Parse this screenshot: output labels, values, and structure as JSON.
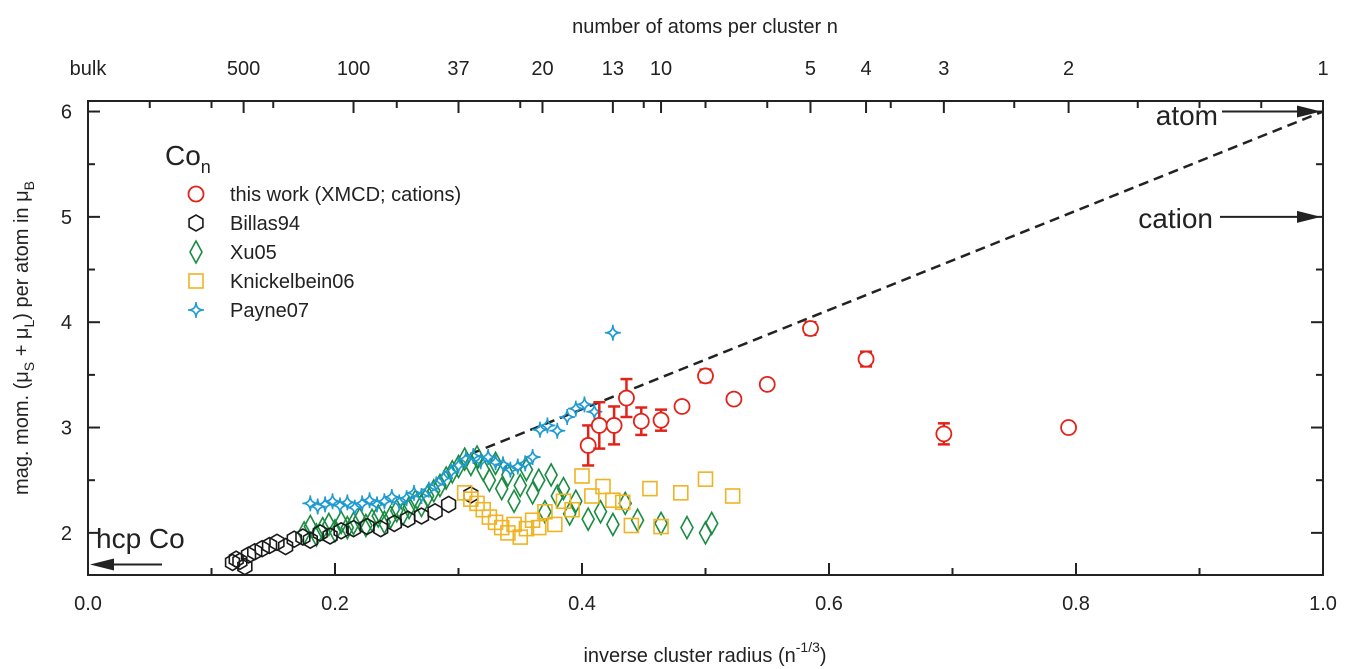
{
  "chart_data": {
    "type": "scatter",
    "title": "",
    "xlabel": "inverse cluster radius (n",
    "xlabel_sup": "-1/3",
    "xlabel_end": ")",
    "ylabel_parts": [
      "mag. mom. (μ",
      "S",
      " + μ",
      "L",
      ") per atom in μ",
      "B"
    ],
    "top_axis_title": "number of atoms per cluster n",
    "xlim": [
      0.0,
      1.0
    ],
    "ylim": [
      1.6,
      6.1
    ],
    "grid": false,
    "legend_placement": "top-left",
    "x_ticks": [
      {
        "value": 0.0,
        "label": "0.0"
      },
      {
        "value": 0.2,
        "label": "0.2"
      },
      {
        "value": 0.4,
        "label": "0.4"
      },
      {
        "value": 0.6,
        "label": "0.6"
      },
      {
        "value": 0.8,
        "label": "0.8"
      },
      {
        "value": 1.0,
        "label": "1.0"
      }
    ],
    "y_ticks": [
      {
        "value": 2,
        "label": "2"
      },
      {
        "value": 3,
        "label": "3"
      },
      {
        "value": 4,
        "label": "4"
      },
      {
        "value": 5,
        "label": "5"
      },
      {
        "value": 6,
        "label": "6"
      }
    ],
    "top_ticks": [
      {
        "value": 0.0,
        "label": "bulk"
      },
      {
        "value": 0.126,
        "label": "500"
      },
      {
        "value": 0.215,
        "label": "100"
      },
      {
        "value": 0.3,
        "label": "37"
      },
      {
        "value": 0.368,
        "label": "20"
      },
      {
        "value": 0.425,
        "label": "13"
      },
      {
        "value": 0.464,
        "label": "10"
      },
      {
        "value": 0.585,
        "label": "5"
      },
      {
        "value": 0.63,
        "label": "4"
      },
      {
        "value": 0.693,
        "label": "3"
      },
      {
        "value": 0.794,
        "label": "2"
      },
      {
        "value": 1.0,
        "label": "1"
      }
    ],
    "top_minor_ticks": [
      0.5,
      0.55,
      0.05,
      0.1,
      0.15,
      0.25,
      0.35,
      0.45,
      0.65,
      0.75,
      0.85,
      0.9,
      0.95
    ],
    "legend_title": "Co",
    "legend_title_sub": "n",
    "series": [
      {
        "name": "this work (XMCD; cations)",
        "marker": "circle",
        "color": "#e2231a",
        "points": [
          {
            "x": 0.405,
            "y": 2.83,
            "err": 0.19
          },
          {
            "x": 0.414,
            "y": 3.02,
            "err": 0.22
          },
          {
            "x": 0.426,
            "y": 3.02,
            "err": 0.18
          },
          {
            "x": 0.436,
            "y": 3.28,
            "err": 0.18
          },
          {
            "x": 0.448,
            "y": 3.06,
            "err": 0.13
          },
          {
            "x": 0.464,
            "y": 3.07,
            "err": 0.1
          },
          {
            "x": 0.481,
            "y": 3.2,
            "err": 0.04
          },
          {
            "x": 0.5,
            "y": 3.49,
            "err": 0.06
          },
          {
            "x": 0.523,
            "y": 3.27,
            "err": 0.04
          },
          {
            "x": 0.55,
            "y": 3.41,
            "err": 0.04
          },
          {
            "x": 0.585,
            "y": 3.94,
            "err": 0.06
          },
          {
            "x": 0.63,
            "y": 3.65,
            "err": 0.07
          },
          {
            "x": 0.693,
            "y": 2.94,
            "err": 0.1
          },
          {
            "x": 0.794,
            "y": 3.0,
            "err": 0.0
          }
        ]
      },
      {
        "name": "Billas94",
        "marker": "hexagon",
        "color": "#1a1a1a",
        "points": [
          {
            "x": 0.117,
            "y": 1.72
          },
          {
            "x": 0.12,
            "y": 1.75
          },
          {
            "x": 0.123,
            "y": 1.73
          },
          {
            "x": 0.127,
            "y": 1.68
          },
          {
            "x": 0.13,
            "y": 1.79
          },
          {
            "x": 0.135,
            "y": 1.82
          },
          {
            "x": 0.141,
            "y": 1.85
          },
          {
            "x": 0.147,
            "y": 1.88
          },
          {
            "x": 0.153,
            "y": 1.91
          },
          {
            "x": 0.16,
            "y": 1.87
          },
          {
            "x": 0.167,
            "y": 1.94
          },
          {
            "x": 0.174,
            "y": 1.96
          },
          {
            "x": 0.18,
            "y": 1.93
          },
          {
            "x": 0.188,
            "y": 2.0
          },
          {
            "x": 0.196,
            "y": 1.97
          },
          {
            "x": 0.205,
            "y": 2.02
          },
          {
            "x": 0.215,
            "y": 2.04
          },
          {
            "x": 0.226,
            "y": 2.06
          },
          {
            "x": 0.237,
            "y": 2.04
          },
          {
            "x": 0.248,
            "y": 2.09
          },
          {
            "x": 0.259,
            "y": 2.13
          },
          {
            "x": 0.27,
            "y": 2.16
          },
          {
            "x": 0.281,
            "y": 2.2
          },
          {
            "x": 0.292,
            "y": 2.27
          },
          {
            "x": 0.31,
            "y": 2.36
          }
        ]
      },
      {
        "name": "Xu05",
        "marker": "diamond",
        "color": "#1a8c42",
        "points": [
          {
            "x": 0.175,
            "y": 2.0
          },
          {
            "x": 0.18,
            "y": 2.06
          },
          {
            "x": 0.185,
            "y": 1.98
          },
          {
            "x": 0.19,
            "y": 2.04
          },
          {
            "x": 0.195,
            "y": 2.08
          },
          {
            "x": 0.2,
            "y": 2.02
          },
          {
            "x": 0.205,
            "y": 2.1
          },
          {
            "x": 0.21,
            "y": 2.05
          },
          {
            "x": 0.215,
            "y": 2.09
          },
          {
            "x": 0.22,
            "y": 2.13
          },
          {
            "x": 0.225,
            "y": 2.07
          },
          {
            "x": 0.23,
            "y": 2.12
          },
          {
            "x": 0.235,
            "y": 2.16
          },
          {
            "x": 0.24,
            "y": 2.1
          },
          {
            "x": 0.245,
            "y": 2.15
          },
          {
            "x": 0.25,
            "y": 2.21
          },
          {
            "x": 0.255,
            "y": 2.18
          },
          {
            "x": 0.26,
            "y": 2.24
          },
          {
            "x": 0.265,
            "y": 2.3
          },
          {
            "x": 0.27,
            "y": 2.26
          },
          {
            "x": 0.275,
            "y": 2.35
          },
          {
            "x": 0.28,
            "y": 2.4
          },
          {
            "x": 0.285,
            "y": 2.45
          },
          {
            "x": 0.29,
            "y": 2.52
          },
          {
            "x": 0.295,
            "y": 2.58
          },
          {
            "x": 0.3,
            "y": 2.63
          },
          {
            "x": 0.305,
            "y": 2.7
          },
          {
            "x": 0.31,
            "y": 2.65
          },
          {
            "x": 0.315,
            "y": 2.72
          },
          {
            "x": 0.32,
            "y": 2.6
          },
          {
            "x": 0.325,
            "y": 2.5
          },
          {
            "x": 0.33,
            "y": 2.66
          },
          {
            "x": 0.335,
            "y": 2.42
          },
          {
            "x": 0.34,
            "y": 2.55
          },
          {
            "x": 0.345,
            "y": 2.3
          },
          {
            "x": 0.35,
            "y": 2.45
          },
          {
            "x": 0.355,
            "y": 2.6
          },
          {
            "x": 0.36,
            "y": 2.38
          },
          {
            "x": 0.365,
            "y": 2.5
          },
          {
            "x": 0.37,
            "y": 2.2
          },
          {
            "x": 0.375,
            "y": 2.55
          },
          {
            "x": 0.38,
            "y": 2.35
          },
          {
            "x": 0.385,
            "y": 2.42
          },
          {
            "x": 0.39,
            "y": 2.18
          },
          {
            "x": 0.395,
            "y": 2.3
          },
          {
            "x": 0.405,
            "y": 2.13
          },
          {
            "x": 0.415,
            "y": 2.2
          },
          {
            "x": 0.425,
            "y": 2.08
          },
          {
            "x": 0.435,
            "y": 2.28
          },
          {
            "x": 0.445,
            "y": 2.12
          },
          {
            "x": 0.464,
            "y": 2.09
          },
          {
            "x": 0.485,
            "y": 2.05
          },
          {
            "x": 0.5,
            "y": 2.0
          },
          {
            "x": 0.505,
            "y": 2.09
          }
        ]
      },
      {
        "name": "Knickelbein06",
        "marker": "square",
        "color": "#f0b323",
        "points": [
          {
            "x": 0.305,
            "y": 2.38
          },
          {
            "x": 0.31,
            "y": 2.32
          },
          {
            "x": 0.315,
            "y": 2.28
          },
          {
            "x": 0.32,
            "y": 2.22
          },
          {
            "x": 0.325,
            "y": 2.15
          },
          {
            "x": 0.33,
            "y": 2.1
          },
          {
            "x": 0.335,
            "y": 2.05
          },
          {
            "x": 0.34,
            "y": 2.0
          },
          {
            "x": 0.345,
            "y": 2.08
          },
          {
            "x": 0.35,
            "y": 1.96
          },
          {
            "x": 0.355,
            "y": 2.04
          },
          {
            "x": 0.36,
            "y": 2.12
          },
          {
            "x": 0.365,
            "y": 2.05
          },
          {
            "x": 0.37,
            "y": 2.2
          },
          {
            "x": 0.378,
            "y": 2.08
          },
          {
            "x": 0.385,
            "y": 2.3
          },
          {
            "x": 0.392,
            "y": 2.22
          },
          {
            "x": 0.4,
            "y": 2.54
          },
          {
            "x": 0.408,
            "y": 2.35
          },
          {
            "x": 0.417,
            "y": 2.44
          },
          {
            "x": 0.425,
            "y": 2.31
          },
          {
            "x": 0.433,
            "y": 2.29
          },
          {
            "x": 0.44,
            "y": 2.07
          },
          {
            "x": 0.455,
            "y": 2.42
          },
          {
            "x": 0.464,
            "y": 2.06
          },
          {
            "x": 0.48,
            "y": 2.38
          },
          {
            "x": 0.5,
            "y": 2.51
          },
          {
            "x": 0.522,
            "y": 2.35
          }
        ]
      },
      {
        "name": "Payne07",
        "marker": "star4",
        "color": "#1f9bd1",
        "points": [
          {
            "x": 0.18,
            "y": 2.28
          },
          {
            "x": 0.186,
            "y": 2.25
          },
          {
            "x": 0.192,
            "y": 2.27
          },
          {
            "x": 0.198,
            "y": 2.3
          },
          {
            "x": 0.204,
            "y": 2.26
          },
          {
            "x": 0.21,
            "y": 2.29
          },
          {
            "x": 0.216,
            "y": 2.24
          },
          {
            "x": 0.222,
            "y": 2.28
          },
          {
            "x": 0.228,
            "y": 2.31
          },
          {
            "x": 0.234,
            "y": 2.27
          },
          {
            "x": 0.24,
            "y": 2.3
          },
          {
            "x": 0.246,
            "y": 2.34
          },
          {
            "x": 0.252,
            "y": 2.29
          },
          {
            "x": 0.258,
            "y": 2.33
          },
          {
            "x": 0.264,
            "y": 2.38
          },
          {
            "x": 0.27,
            "y": 2.35
          },
          {
            "x": 0.276,
            "y": 2.41
          },
          {
            "x": 0.282,
            "y": 2.46
          },
          {
            "x": 0.288,
            "y": 2.52
          },
          {
            "x": 0.294,
            "y": 2.58
          },
          {
            "x": 0.3,
            "y": 2.64
          },
          {
            "x": 0.306,
            "y": 2.7
          },
          {
            "x": 0.312,
            "y": 2.73
          },
          {
            "x": 0.318,
            "y": 2.68
          },
          {
            "x": 0.324,
            "y": 2.72
          },
          {
            "x": 0.33,
            "y": 2.67
          },
          {
            "x": 0.336,
            "y": 2.65
          },
          {
            "x": 0.342,
            "y": 2.6
          },
          {
            "x": 0.348,
            "y": 2.63
          },
          {
            "x": 0.354,
            "y": 2.66
          },
          {
            "x": 0.36,
            "y": 2.72
          },
          {
            "x": 0.366,
            "y": 2.98
          },
          {
            "x": 0.372,
            "y": 3.02
          },
          {
            "x": 0.38,
            "y": 2.97
          },
          {
            "x": 0.388,
            "y": 3.1
          },
          {
            "x": 0.395,
            "y": 3.18
          },
          {
            "x": 0.402,
            "y": 3.22
          },
          {
            "x": 0.41,
            "y": 3.15
          },
          {
            "x": 0.425,
            "y": 3.9
          }
        ]
      }
    ],
    "dashed_line": {
      "x": [
        0.31,
        1.0
      ],
      "y": [
        2.75,
        6.0
      ]
    },
    "annotations": [
      {
        "text": "atom",
        "y": 6.0
      },
      {
        "text": "cation",
        "y": 5.0
      },
      {
        "text": "hcp Co",
        "y": 1.7
      }
    ]
  }
}
